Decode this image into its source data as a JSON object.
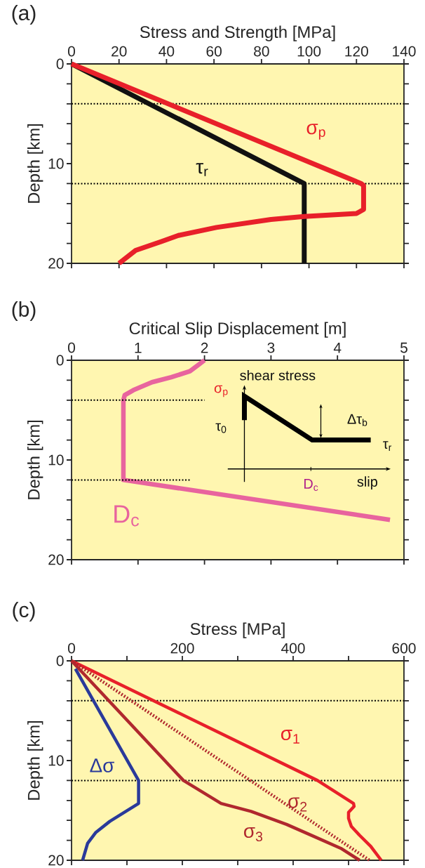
{
  "chart_data": [
    {
      "type": "line",
      "xlabel": "Stress and Strength [MPa]",
      "ylabel": "Depth [km]",
      "annotations": [
        "(a)"
      ],
      "xlim": [
        0,
        140
      ],
      "xticks": [
        0,
        20,
        40,
        60,
        80,
        100,
        120,
        140
      ],
      "ylim": [
        20,
        0
      ],
      "yticks": [
        0,
        {
          "value": 2,
          "label": null
        },
        {
          "value": 4,
          "label": null
        },
        {
          "value": 6,
          "label": null
        },
        {
          "value": 8,
          "label": null
        },
        10,
        {
          "value": 12,
          "label": null
        },
        {
          "value": 14,
          "label": null
        },
        {
          "value": 16,
          "label": null
        },
        {
          "value": 18,
          "label": null
        },
        20
      ],
      "ref_lines": [
        {
          "axis": "y",
          "value": 4,
          "color": "#000000",
          "line_style": "dotted"
        },
        {
          "axis": "y",
          "value": 12,
          "color": "#000000",
          "line_style": "dotted"
        }
      ],
      "series": [
        {
          "name": "τ$_{r}$",
          "color": "#111111",
          "x": [
            0,
            98,
            98
          ],
          "values": [
            0,
            12,
            20
          ]
        },
        {
          "name": "σ$_{p}$",
          "color": "#e8202a",
          "x": [
            0,
            122,
            123,
            123,
            120,
            98,
            84,
            61,
            45,
            38,
            27,
            20
          ],
          "values": [
            0,
            12,
            12.2,
            14.6,
            15,
            15.3,
            15.6,
            16.4,
            17.2,
            17.8,
            18.7,
            20
          ]
        }
      ]
    },
    {
      "type": "line",
      "xlabel": "Critical Slip Displacement [m]",
      "ylabel": "Depth [km]",
      "annotations": [
        "(b)",
        "shear stress",
        "σ$_{p}$",
        "τ$_{0}$",
        "Δτ$_{b}$",
        "τ$_{r}$",
        "D$_{c}$",
        "slip"
      ],
      "xlim": [
        0,
        5
      ],
      "xticks": [
        0,
        1,
        2,
        3,
        4,
        5
      ],
      "ylim": [
        20,
        0
      ],
      "yticks": [
        0,
        {
          "value": 2,
          "label": null
        },
        {
          "value": 4,
          "label": null
        },
        {
          "value": 6,
          "label": null
        },
        {
          "value": 8,
          "label": null
        },
        10,
        {
          "value": 12,
          "label": null
        },
        {
          "value": 14,
          "label": null
        },
        {
          "value": 16,
          "label": null
        },
        {
          "value": 18,
          "label": null
        },
        20
      ],
      "series": [
        {
          "name": "D$_{c}$",
          "color": "#e8649e",
          "x": [
            2.0,
            1.9,
            1.78,
            1.5,
            1.21,
            0.93,
            0.8,
            0.78,
            0.78,
            4.79
          ],
          "values": [
            0,
            0.5,
            1.1,
            1.7,
            2.2,
            3.0,
            3.5,
            4,
            12,
            16
          ]
        },
        {
          "color": "#000000",
          "line_style": "dotted",
          "x": [
            0,
            2.0
          ],
          "values": [
            4,
            4
          ]
        },
        {
          "color": "#000000",
          "line_style": "dotted",
          "x": [
            0,
            1.8
          ],
          "values": [
            12,
            12
          ]
        }
      ]
    },
    {
      "type": "line",
      "xlabel": "Stress [MPa]",
      "ylabel": "Depth [km]",
      "annotations": [
        "(c)"
      ],
      "xlim": [
        0,
        600
      ],
      "xticks": [
        0,
        {
          "value": 100,
          "label": null
        },
        200,
        {
          "value": 300,
          "label": null
        },
        400,
        {
          "value": 500,
          "label": null
        },
        600
      ],
      "ylim": [
        20,
        0
      ],
      "yticks": [
        0,
        {
          "value": 2,
          "label": null
        },
        {
          "value": 4,
          "label": null
        },
        {
          "value": 6,
          "label": null
        },
        {
          "value": 8,
          "label": null
        },
        10,
        {
          "value": 12,
          "label": null
        },
        {
          "value": 14,
          "label": null
        },
        {
          "value": 16,
          "label": null
        },
        {
          "value": 18,
          "label": null
        },
        20
      ],
      "ref_lines": [
        {
          "axis": "y",
          "value": 4,
          "color": "#000000",
          "line_style": "dotted"
        },
        {
          "axis": "y",
          "value": 12,
          "color": "#000000",
          "line_style": "dotted"
        }
      ],
      "series": [
        {
          "name": "σ$_{1}$",
          "color": "#e8202a",
          "x": [
            0,
            444,
            509,
            510,
            500,
            500,
            505,
            520,
            540,
            559
          ],
          "values": [
            0,
            12,
            14.3,
            14.6,
            15.2,
            15.8,
            16.6,
            17.5,
            18.6,
            20
          ]
        },
        {
          "name": "σ$_{2}$",
          "color": "#b0282e",
          "line_style": "dotted",
          "x": [
            0,
            538
          ],
          "values": [
            0,
            20
          ]
        },
        {
          "name": "σ$_{3}$",
          "color": "#b0282e",
          "x": [
            0,
            202,
            270,
            324,
            388,
            437,
            486,
            520
          ],
          "values": [
            0,
            12,
            14.3,
            15.1,
            16.4,
            17.6,
            18.8,
            20
          ]
        },
        {
          "name": "Δσ",
          "color": "#2a3a9a",
          "x": [
            7,
            121,
            121,
            98,
            69,
            44,
            29,
            20
          ],
          "values": [
            0.8,
            12,
            14.3,
            15.1,
            16.1,
            17.2,
            18.3,
            20
          ]
        }
      ]
    }
  ]
}
